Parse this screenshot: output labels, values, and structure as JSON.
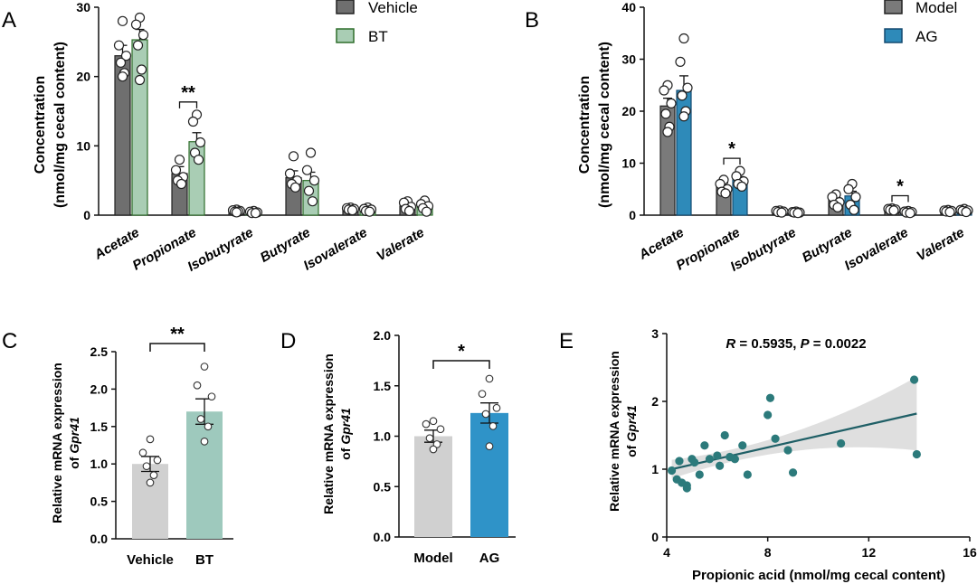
{
  "colors": {
    "vehicle": "#6f6f6f",
    "bt": "#a9cdb4",
    "bt_edge": "#2f6e2b",
    "model": "#7a7a7a",
    "ag": "#2e8ab9",
    "ag_edge": "#134a70",
    "gray_bar": "#d0d0d0",
    "bt_bar_c": "#9ec9bd",
    "ag_bar_d": "#2f93c8",
    "scatter": "#2c7a7b",
    "band": "#d9d9d9"
  },
  "chart_data": [
    {
      "id": "A",
      "type": "bar",
      "panel_label": "A",
      "ylabel_line1": "Concentration",
      "ylabel_line2": "(nmol/mg cecal content)",
      "ylim": [
        0,
        30
      ],
      "yticks": [
        "0",
        "10",
        "20",
        "30"
      ],
      "categories": [
        "Acetate",
        "Propionate",
        "Isobutyrate",
        "Butyrate",
        "Isovalerate",
        "Valerate"
      ],
      "series": [
        {
          "name": "Vehicle",
          "values": [
            23.0,
            6.0,
            0.6,
            5.4,
            0.9,
            1.3
          ],
          "sem": [
            1.5,
            1.0,
            0.1,
            1.0,
            0.1,
            0.3
          ],
          "points": [
            [
              28.0,
              24.5,
              23.0,
              22.0,
              20.5,
              20.0
            ],
            [
              8.0,
              6.5,
              5.5,
              5.0,
              4.5
            ],
            [
              0.8,
              0.7,
              0.6,
              0.5,
              0.5,
              0.4
            ],
            [
              8.5,
              6.0,
              5.0,
              4.5,
              4.0
            ],
            [
              1.1,
              1.0,
              0.9,
              0.8,
              0.7
            ],
            [
              2.0,
              1.8,
              1.2,
              0.9,
              0.6
            ]
          ]
        },
        {
          "name": "BT",
          "values": [
            25.3,
            10.6,
            0.4,
            5.0,
            0.8,
            1.3
          ],
          "sem": [
            1.5,
            1.3,
            0.1,
            1.2,
            0.1,
            0.3
          ],
          "points": [
            [
              28.5,
              27.5,
              26.0,
              24.5,
              21.0,
              19.5
            ],
            [
              14.5,
              13.5,
              10.5,
              9.0,
              8.0
            ],
            [
              0.6,
              0.5,
              0.4,
              0.3,
              0.3
            ],
            [
              9.0,
              6.5,
              5.0,
              3.5,
              2.0
            ],
            [
              1.1,
              0.9,
              0.8,
              0.6,
              0.5
            ],
            [
              2.1,
              1.6,
              1.3,
              1.0,
              0.5
            ]
          ]
        }
      ],
      "significance": [
        {
          "category": "Propionate",
          "label": "**"
        }
      ]
    },
    {
      "id": "B",
      "type": "bar",
      "panel_label": "B",
      "ylabel_line1": "Concentration",
      "ylabel_line2": "(nmol/mg cecal content)",
      "ylim": [
        0,
        40
      ],
      "yticks": [
        "0",
        "10",
        "20",
        "30",
        "40"
      ],
      "categories": [
        "Acetate",
        "Propionate",
        "Isobutyrate",
        "Butyrate",
        "Isovalerate",
        "Valerate"
      ],
      "series": [
        {
          "name": "Model",
          "values": [
            21.0,
            5.5,
            0.7,
            2.8,
            1.1,
            0.8
          ],
          "sem": [
            1.5,
            0.7,
            0.1,
            0.7,
            0.1,
            0.1
          ],
          "points": [
            [
              25.0,
              24.0,
              21.5,
              19.5,
              17.0,
              16.0
            ],
            [
              6.8,
              6.0,
              5.0,
              4.5,
              4.2
            ],
            [
              0.9,
              0.8,
              0.7,
              0.6,
              0.5
            ],
            [
              4.0,
              3.5,
              2.5,
              2.0,
              1.5
            ],
            [
              1.3,
              1.2,
              1.1,
              1.0,
              0.9
            ],
            [
              1.0,
              0.9,
              0.8,
              0.7,
              0.6
            ]
          ]
        },
        {
          "name": "AG",
          "values": [
            24.0,
            6.8,
            0.6,
            3.7,
            0.6,
            0.9
          ],
          "sem": [
            2.8,
            0.6,
            0.1,
            0.9,
            0.1,
            0.1
          ],
          "points": [
            [
              34.0,
              29.5,
              24.5,
              23.0,
              20.0,
              19.0
            ],
            [
              8.5,
              7.5,
              6.5,
              6.0,
              5.5
            ],
            [
              0.7,
              0.6,
              0.5,
              0.5,
              0.4
            ],
            [
              6.0,
              5.0,
              3.5,
              2.0,
              1.0
            ],
            [
              0.8,
              0.7,
              0.6,
              0.5,
              0.4
            ],
            [
              1.2,
              1.0,
              0.9,
              0.8,
              0.6
            ]
          ]
        }
      ],
      "significance": [
        {
          "category": "Propionate",
          "label": "*"
        },
        {
          "category": "Isovalerate",
          "label": "*"
        }
      ]
    },
    {
      "id": "C",
      "type": "bar",
      "panel_label": "C",
      "ylabel_line1": "Relative mRNA expression",
      "ylabel_line2_prefix": "of ",
      "ylabel_gene": "Gpr41",
      "ylim": [
        0,
        2.5
      ],
      "yticks": [
        "0.0",
        "0.5",
        "1.0",
        "1.5",
        "2.0",
        "2.5"
      ],
      "categories": [
        "Vehicle",
        "BT"
      ],
      "values": [
        1.0,
        1.7
      ],
      "sem": [
        0.1,
        0.17
      ],
      "points": [
        [
          1.33,
          1.15,
          1.05,
          0.97,
          0.85,
          0.75
        ],
        [
          2.3,
          2.05,
          1.9,
          1.6,
          1.5,
          1.3
        ]
      ],
      "significance": [
        {
          "label": "**"
        }
      ]
    },
    {
      "id": "D",
      "type": "bar",
      "panel_label": "D",
      "ylabel_line1": "Relative mRNA expression",
      "ylabel_line2_prefix": "of ",
      "ylabel_gene": "Gpr41",
      "ylim": [
        0,
        2.0
      ],
      "yticks": [
        "0.0",
        "0.5",
        "1.0",
        "1.5",
        "2.0"
      ],
      "categories": [
        "Model",
        "AG"
      ],
      "values": [
        1.0,
        1.23
      ],
      "sem": [
        0.06,
        0.1
      ],
      "points": [
        [
          1.15,
          1.12,
          1.07,
          0.98,
          0.92,
          0.87
        ],
        [
          1.57,
          1.42,
          1.28,
          1.22,
          1.1,
          0.9
        ]
      ],
      "significance": [
        {
          "label": "*"
        }
      ]
    },
    {
      "id": "E",
      "type": "scatter",
      "panel_label": "E",
      "title_R": "R",
      "title_R_value": " = 0.5935, ",
      "title_P": "P",
      "title_P_value": " = 0.0022",
      "xlabel": "Propionic acid (nmol/mg cecal content)",
      "ylabel_line1": "Relative mRNA expression",
      "ylabel_line2_prefix": "of ",
      "ylabel_gene": "Gpr41",
      "xlim": [
        4,
        16
      ],
      "ylim": [
        0,
        3
      ],
      "xticks": [
        "4",
        "8",
        "12",
        "16"
      ],
      "yticks": [
        "0",
        "1",
        "2",
        "3"
      ],
      "points": [
        [
          4.2,
          0.98
        ],
        [
          4.4,
          0.85
        ],
        [
          4.5,
          1.12
        ],
        [
          4.6,
          0.8
        ],
        [
          4.8,
          0.76
        ],
        [
          4.8,
          0.72
        ],
        [
          5.0,
          1.15
        ],
        [
          5.1,
          1.1
        ],
        [
          5.3,
          0.92
        ],
        [
          5.5,
          1.35
        ],
        [
          5.7,
          1.15
        ],
        [
          6.0,
          1.2
        ],
        [
          6.1,
          1.05
        ],
        [
          6.3,
          1.5
        ],
        [
          6.5,
          1.18
        ],
        [
          6.7,
          1.15
        ],
        [
          7.0,
          1.35
        ],
        [
          7.2,
          0.92
        ],
        [
          8.0,
          1.8
        ],
        [
          8.1,
          2.05
        ],
        [
          8.3,
          1.45
        ],
        [
          8.8,
          1.28
        ],
        [
          9.0,
          0.95
        ],
        [
          10.9,
          1.38
        ],
        [
          13.8,
          2.32
        ],
        [
          13.9,
          1.22
        ]
      ],
      "fit": {
        "x0": 4.2,
        "y0": 1.0,
        "x1": 13.9,
        "y1": 1.82
      }
    }
  ]
}
